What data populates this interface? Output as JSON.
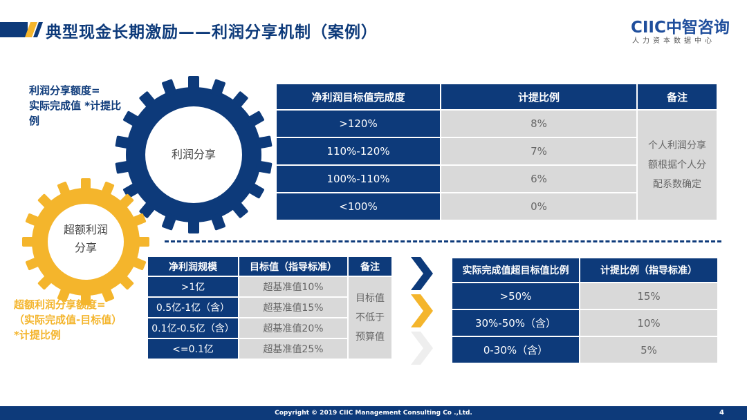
{
  "header": {
    "title": "典型现金长期激励——利润分享机制（案例）",
    "logo": "CIIC中智咨询",
    "logo_sub": "人力资本数据中心"
  },
  "gears": {
    "blue_label": "利润分享",
    "gold_label_line1": "超额利润",
    "gold_label_line2": "分享"
  },
  "formulas": {
    "profit_share": [
      "利润分享额度=",
      "实际完成值 *计提比",
      "例"
    ],
    "excess_share": [
      "超额利润分享额度=",
      "（实际完成值-目标值）",
      " *计提比例"
    ]
  },
  "table_profit": {
    "headers": [
      "净利润目标值完成度",
      "计提比例",
      "备注"
    ],
    "rows": [
      [
        ">120%",
        "8%"
      ],
      [
        "110%-120%",
        "7%"
      ],
      [
        "100%-110%",
        "6%"
      ],
      [
        "<100%",
        "0%"
      ]
    ],
    "note": [
      "个人利润分享",
      "额根据个人分",
      "配系数确定"
    ]
  },
  "table_scale": {
    "headers": [
      "净利润规模",
      "目标值（指导标准）",
      "备注"
    ],
    "rows": [
      [
        ">1亿",
        "超基准值10%"
      ],
      [
        "0.5亿-1亿（含）",
        "超基准值15%"
      ],
      [
        "0.1亿-0.5亿（含）",
        "超基准值20%"
      ],
      [
        "<=0.1亿",
        "超基准值25%"
      ]
    ],
    "note": [
      "目标值",
      "不低于",
      "预算值"
    ]
  },
  "table_excess": {
    "headers": [
      "实际完成值超目标值比例",
      "计提比例（指导标准）"
    ],
    "rows": [
      [
        ">50%",
        "15%"
      ],
      [
        "30%-50%（含）",
        "10%"
      ],
      [
        "0-30%（含）",
        "5%"
      ]
    ]
  },
  "colors": {
    "brand_blue": "#0d3a7a",
    "gold": "#f4b52c",
    "grey_cell": "#d9d9d9"
  },
  "footer": {
    "copyright": "Copyright © 2019 CIIC Management Consulting Co .,Ltd.",
    "page": "4"
  }
}
